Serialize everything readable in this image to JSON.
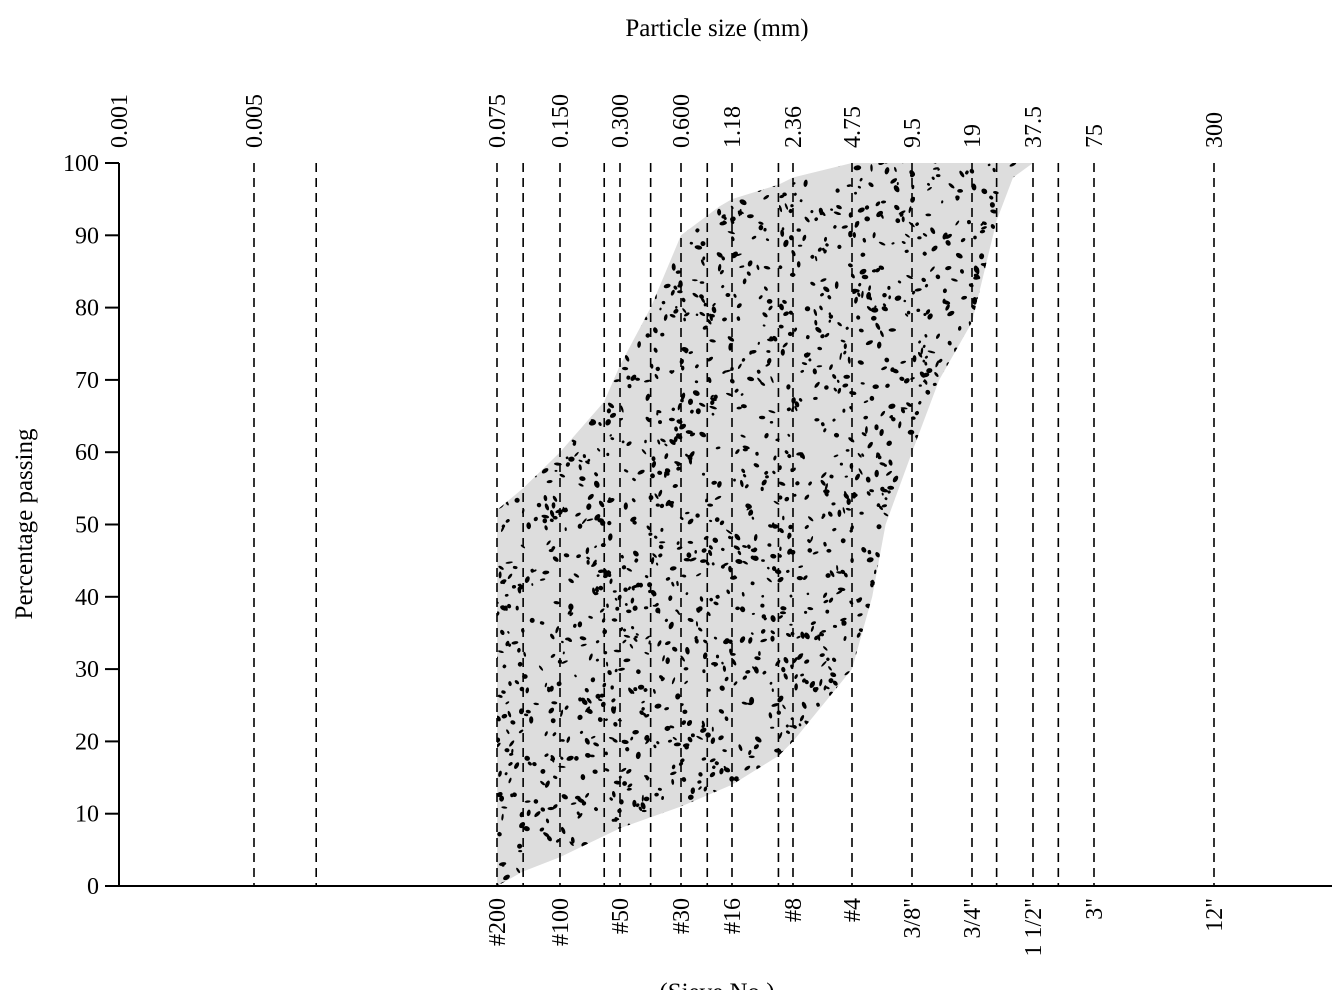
{
  "chart_data": {
    "type": "area",
    "title": "Particle size (mm)",
    "xlabel": "(Sieve No.)",
    "ylabel": "Percentage passing",
    "ylim": [
      0,
      100
    ],
    "yticks": [
      0,
      10,
      20,
      30,
      40,
      50,
      60,
      70,
      80,
      90,
      100
    ],
    "x_scale": "log",
    "grid": "vertical dashed lines at sieve sizes",
    "top_ticks": [
      {
        "label": "0.001",
        "mm": 0.001
      },
      {
        "label": "0.005",
        "mm": 0.005
      },
      {
        "label": "0.075",
        "mm": 0.075
      },
      {
        "label": "0.150",
        "mm": 0.15
      },
      {
        "label": "0.300",
        "mm": 0.3
      },
      {
        "label": "0.600",
        "mm": 0.6
      },
      {
        "label": "1.18",
        "mm": 1.18
      },
      {
        "label": "2.36",
        "mm": 2.36
      },
      {
        "label": "4.75",
        "mm": 4.75
      },
      {
        "label": "9.5",
        "mm": 9.5
      },
      {
        "label": "19",
        "mm": 19
      },
      {
        "label": "37.5",
        "mm": 37.5
      },
      {
        "label": "75",
        "mm": 75
      },
      {
        "label": "300",
        "mm": 300
      }
    ],
    "bottom_ticks": [
      {
        "label": "#200",
        "mm": 0.075
      },
      {
        "label": "#100",
        "mm": 0.15
      },
      {
        "label": "#50",
        "mm": 0.3
      },
      {
        "label": "#30",
        "mm": 0.6
      },
      {
        "label": "#16",
        "mm": 1.18
      },
      {
        "label": "#8",
        "mm": 2.36
      },
      {
        "label": "#4",
        "mm": 4.75
      },
      {
        "label": "3/8\"",
        "mm": 9.5
      },
      {
        "label": "3/4\"",
        "mm": 19
      },
      {
        "label": "1 1/2\"",
        "mm": 37.5
      },
      {
        "label": "3\"",
        "mm": 75
      },
      {
        "label": "12\"",
        "mm": 300
      }
    ],
    "unlabeled_sieve_lines_mm": [
      0.01,
      0.1,
      0.25,
      0.425,
      0.85,
      2.0,
      25,
      50
    ],
    "band": {
      "fill": "#dddddd",
      "speckle_color": "#000000",
      "upper": [
        {
          "mm": 0.075,
          "pct": 52
        },
        {
          "mm": 0.1,
          "pct": 55
        },
        {
          "mm": 0.15,
          "pct": 60
        },
        {
          "mm": 0.25,
          "pct": 67
        },
        {
          "mm": 0.3,
          "pct": 72
        },
        {
          "mm": 0.425,
          "pct": 80
        },
        {
          "mm": 0.6,
          "pct": 90
        },
        {
          "mm": 1.0,
          "pct": 94
        },
        {
          "mm": 1.18,
          "pct": 95
        },
        {
          "mm": 2.0,
          "pct": 97
        },
        {
          "mm": 2.36,
          "pct": 98
        },
        {
          "mm": 4.75,
          "pct": 100
        },
        {
          "mm": 37.5,
          "pct": 100
        }
      ],
      "lower": [
        {
          "mm": 0.075,
          "pct": 0
        },
        {
          "mm": 0.1,
          "pct": 2
        },
        {
          "mm": 0.15,
          "pct": 4
        },
        {
          "mm": 0.3,
          "pct": 8
        },
        {
          "mm": 0.6,
          "pct": 11
        },
        {
          "mm": 1.18,
          "pct": 14
        },
        {
          "mm": 2.0,
          "pct": 18
        },
        {
          "mm": 2.36,
          "pct": 20
        },
        {
          "mm": 4.75,
          "pct": 30
        },
        {
          "mm": 6.0,
          "pct": 40
        },
        {
          "mm": 7.0,
          "pct": 50
        },
        {
          "mm": 9.5,
          "pct": 60
        },
        {
          "mm": 13.0,
          "pct": 70
        },
        {
          "mm": 19.0,
          "pct": 78
        },
        {
          "mm": 25.0,
          "pct": 92
        },
        {
          "mm": 30.0,
          "pct": 98
        },
        {
          "mm": 37.5,
          "pct": 100
        }
      ]
    }
  }
}
